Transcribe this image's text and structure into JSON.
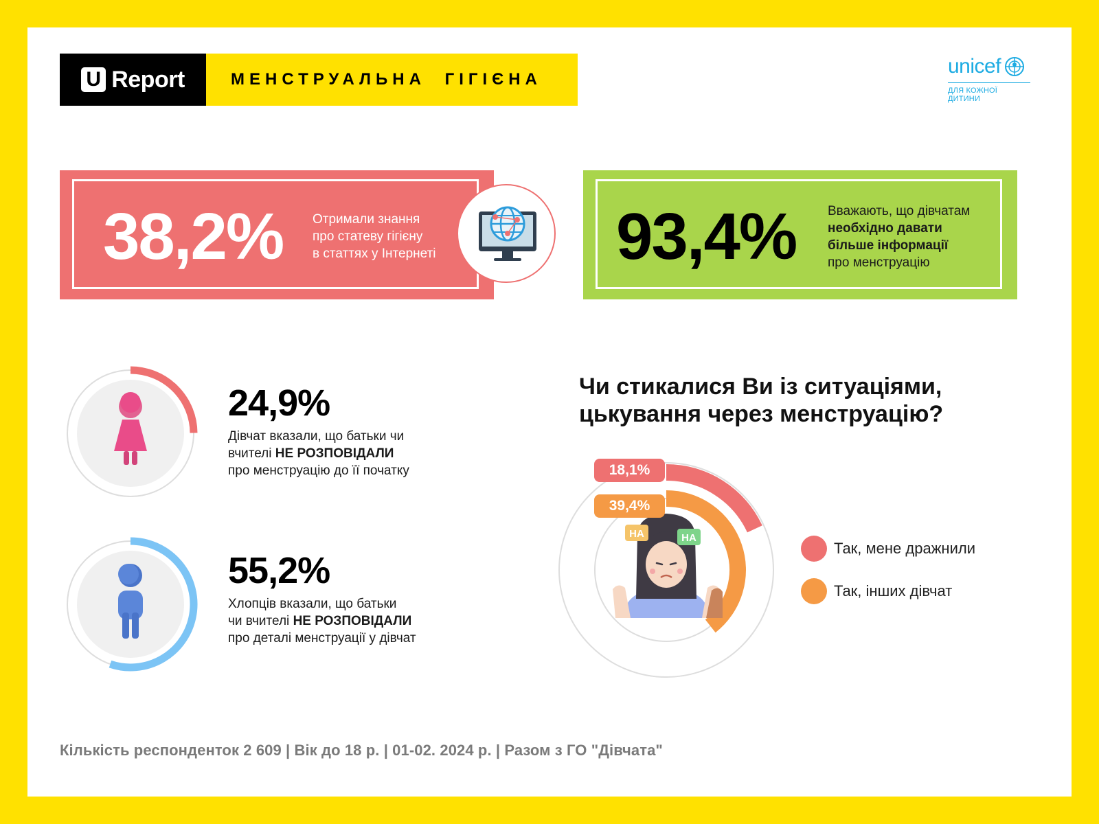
{
  "header": {
    "logo_letter": "U",
    "logo_word": "Report",
    "title": "МЕНСТРУАЛЬНА ГІГІЄНА",
    "partner_logo": "unicef",
    "partner_tagline": "ДЛЯ КОЖНОЇ ДИТИНИ"
  },
  "stat_internet": {
    "value": "38,2%",
    "desc_lines": [
      "Отримали знання",
      "про статеву гігієну",
      "в статтях у Інтернеті"
    ],
    "icon": "globe-monitor-icon",
    "color": "#EE7171"
  },
  "stat_more_info": {
    "value": "93,4%",
    "desc_line1": "Вважають, що дівчатам",
    "desc_bold1": "необхідно давати",
    "desc_bold2": "більше інформації",
    "desc_line4": "про менструацію",
    "color": "#A9D54B"
  },
  "stat_girls": {
    "value": "24,9%",
    "fraction": 0.249,
    "line1": "Дівчат вказали, що батьки чи",
    "line2_pre": "вчителі ",
    "line2_bold": "НЕ РОЗПОВІДАЛИ",
    "line3": "про менструацію до її початку",
    "icon": "girl-icon",
    "color": "#EE7171"
  },
  "stat_boys": {
    "value": "55,2%",
    "fraction": 0.552,
    "line1": "Хлопців вказали, що батьки",
    "line2_pre": "чи вчителі ",
    "line2_bold": "НЕ РОЗПОВІДАЛИ",
    "line3": "про деталі менструації у дівчат",
    "icon": "boy-icon",
    "color": "#7CC4F5"
  },
  "bullying": {
    "question_line1": "Чи стикалися Ви із ситуаціями,",
    "question_line2": "цькування через менструацію?",
    "illustration": "crying-girl-icon",
    "laugh_text": "HA",
    "chart_data": {
      "type": "donut",
      "series": [
        {
          "name": "Так, мене дражнили",
          "value": 18.1,
          "label": "18,1%",
          "color": "#EE7171"
        },
        {
          "name": "Так, інших дівчат",
          "value": 39.4,
          "label": "39,4%",
          "color": "#F59A45"
        }
      ]
    }
  },
  "footer": {
    "text": "Кількість респонденток 2 609 |  Вік до 18 р. | 01-02. 2024 р. | Разом з  ГО \"Дівчата\""
  }
}
